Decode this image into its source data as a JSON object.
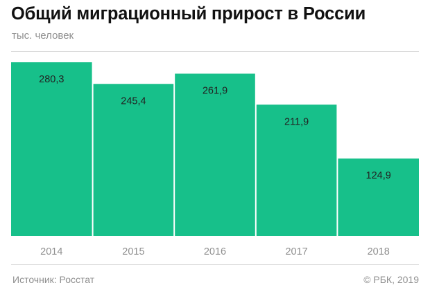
{
  "header": {
    "title": "Общий миграционный прирост в России",
    "subtitle": "тыс. человек"
  },
  "footer": {
    "source": "Источник: Росстат",
    "copyright": "© РБК, 2019"
  },
  "colors": {
    "bar": "#17c08a",
    "label_text": "#222222",
    "tick_text": "#8f8f8f"
  },
  "chart_data": {
    "type": "bar",
    "categories": [
      "2014",
      "2015",
      "2016",
      "2017",
      "2018"
    ],
    "values": [
      280.3,
      245.4,
      261.9,
      211.9,
      124.9
    ],
    "value_labels": [
      "280,3",
      "245,4",
      "261,9",
      "211,9",
      "124,9"
    ],
    "title": "Общий миграционный прирост в России",
    "ylabel": "тыс. человек",
    "xlabel": "",
    "ylim": [
      0,
      280.3
    ],
    "grid": false,
    "legend": "none"
  }
}
